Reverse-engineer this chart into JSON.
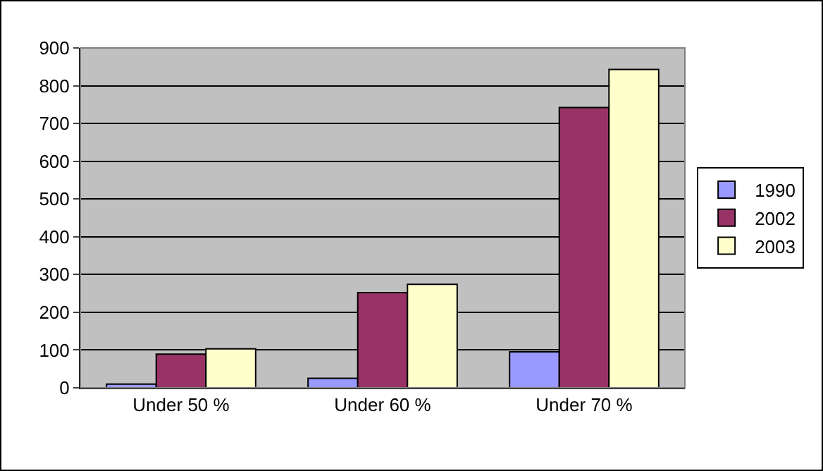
{
  "chart_data": {
    "type": "bar",
    "categories": [
      "Under 50 %",
      "Under 60 %",
      "Under 70 %"
    ],
    "series": [
      {
        "name": "1990",
        "color": "#9999ff",
        "values": [
          10,
          25,
          95
        ]
      },
      {
        "name": "2002",
        "color": "#993366",
        "values": [
          89,
          252,
          742
        ]
      },
      {
        "name": "2003",
        "color": "#ffffcc",
        "values": [
          103,
          274,
          843
        ]
      }
    ],
    "ylim": [
      0,
      900
    ],
    "yticks": [
      0,
      100,
      200,
      300,
      400,
      500,
      600,
      700,
      800,
      900
    ],
    "grid": "y",
    "legend": "right"
  }
}
